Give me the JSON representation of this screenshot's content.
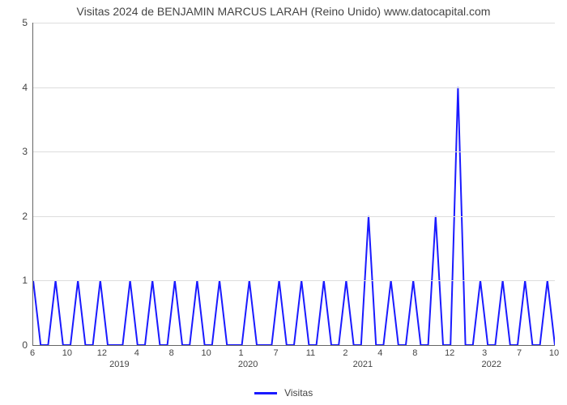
{
  "chart": {
    "type": "line",
    "title": "Visitas 2024 de BENJAMIN MARCUS LARAH (Reino Unido) www.datocapital.com",
    "title_fontsize": 14,
    "title_color": "#444444",
    "background_color": "#ffffff",
    "grid_color": "#dddddd",
    "axis_color": "#666666",
    "line_color": "#1a1aff",
    "line_width": 2,
    "ylim": [
      0,
      5
    ],
    "ytick_step": 1,
    "y_ticks": [
      0,
      1,
      2,
      3,
      4,
      5
    ],
    "x_ticks": [
      "6",
      "10",
      "12",
      "4",
      "8",
      "10",
      "1",
      "7",
      "11",
      "2",
      "4",
      "8",
      "12",
      "3",
      "7",
      "10"
    ],
    "x_years": [
      {
        "label": "2019",
        "pos_index": 2.5
      },
      {
        "label": "2020",
        "pos_index": 6.2
      },
      {
        "label": "2021",
        "pos_index": 9.5
      },
      {
        "label": "2022",
        "pos_index": 13.2
      }
    ],
    "legend_label": "Visitas",
    "values": [
      1,
      0,
      0,
      1,
      0,
      0,
      1,
      0,
      0,
      1,
      0,
      0,
      0,
      1,
      0,
      0,
      1,
      0,
      0,
      1,
      0,
      0,
      1,
      0,
      0,
      1,
      0,
      0,
      0,
      1,
      0,
      0,
      0,
      1,
      0,
      0,
      1,
      0,
      0,
      1,
      0,
      0,
      1,
      0,
      0,
      2,
      0,
      0,
      1,
      0,
      0,
      1,
      0,
      0,
      2,
      0,
      0,
      4,
      0,
      0,
      1,
      0,
      0,
      1,
      0,
      0,
      1,
      0,
      0,
      1,
      0
    ]
  }
}
